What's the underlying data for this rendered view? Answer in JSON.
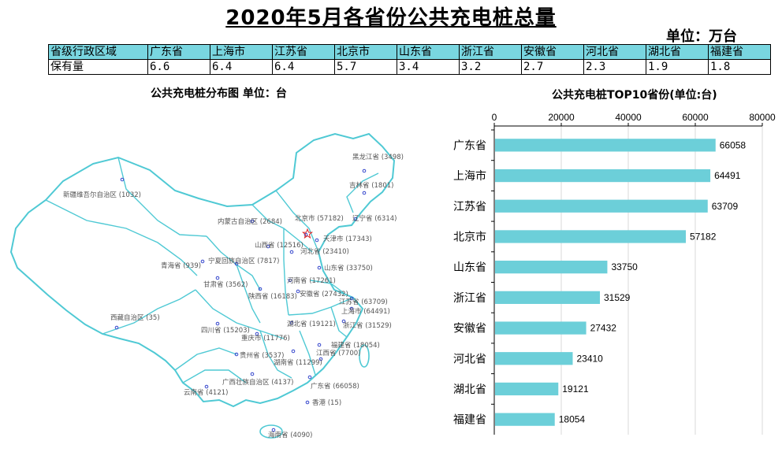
{
  "header": {
    "title_year": "2020",
    "title_rest": "年5月各省份公共充电桩总量",
    "unit": "单位：万台"
  },
  "summary_table": {
    "row_labels": [
      "省级行政区域",
      "保有量"
    ],
    "provinces": [
      "广东省",
      "上海市",
      "江苏省",
      "北京市",
      "山东省",
      "浙江省",
      "安徽省",
      "河北省",
      "湖北省",
      "福建省"
    ],
    "values": [
      "6.6",
      "6.4",
      "6.4",
      "5.7",
      "3.4",
      "3.2",
      "2.7",
      "2.3",
      "1.9",
      "1.8"
    ]
  },
  "map": {
    "title": "公共充电桩分布图  单位：台",
    "outline_color": "#4fc9d4",
    "dot_color": "#3344cc",
    "star_color": "#e02020",
    "labels": [
      {
        "text": "黑龙江省 (3498)"
      },
      {
        "text": "吉林省 (1801)"
      },
      {
        "text": "新疆维吾尔自治区 (1032)"
      },
      {
        "text": "内蒙古自治区 (2684)"
      },
      {
        "text": "北京市 (57182)"
      },
      {
        "text": "辽宁省 (6314)"
      },
      {
        "text": "天津市 (17343)"
      },
      {
        "text": "山西省 (12516)"
      },
      {
        "text": "河北省 (23410)"
      },
      {
        "text": "青海省 (939)"
      },
      {
        "text": "宁夏回族自治区 (7817)"
      },
      {
        "text": "山东省 (33750)"
      },
      {
        "text": "甘肃省 (3562)"
      },
      {
        "text": "河南省 (17261)"
      },
      {
        "text": "陕西省 (16183)"
      },
      {
        "text": "安徽省 (27432)"
      },
      {
        "text": "江苏省 (63709)"
      },
      {
        "text": "上海市 (64491)"
      },
      {
        "text": "西藏自治区 (35)"
      },
      {
        "text": "湖北省 (19121)"
      },
      {
        "text": "浙江省 (31529)"
      },
      {
        "text": "四川省 (15203)"
      },
      {
        "text": "重庆市 (11776)"
      },
      {
        "text": "福建省 (18054)"
      },
      {
        "text": "贵州省 (3537)"
      },
      {
        "text": "江西省 (7700)"
      },
      {
        "text": "湖南省 (11299)"
      },
      {
        "text": "广西壮族自治区 (4137)"
      },
      {
        "text": "广东省 (66058)"
      },
      {
        "text": "云南省 (4121)"
      },
      {
        "text": "香港 (15)"
      },
      {
        "text": "海南省 (4090)"
      }
    ]
  },
  "chart_data": {
    "type": "bar",
    "orientation": "horizontal",
    "title": "公共充电桩TOP10省份(单位:台)",
    "categories": [
      "广东省",
      "上海市",
      "江苏省",
      "北京市",
      "山东省",
      "浙江省",
      "安徽省",
      "河北省",
      "湖北省",
      "福建省"
    ],
    "values": [
      66058,
      64491,
      63709,
      57182,
      33750,
      31529,
      27432,
      23410,
      19121,
      18054
    ],
    "xlim": [
      0,
      80000
    ],
    "x_ticks": [
      "0",
      "20000",
      "40000",
      "60000",
      "80000"
    ],
    "axis_position": "top",
    "grid": true,
    "bar_color": "#6ccfd9",
    "data_labels": true
  }
}
